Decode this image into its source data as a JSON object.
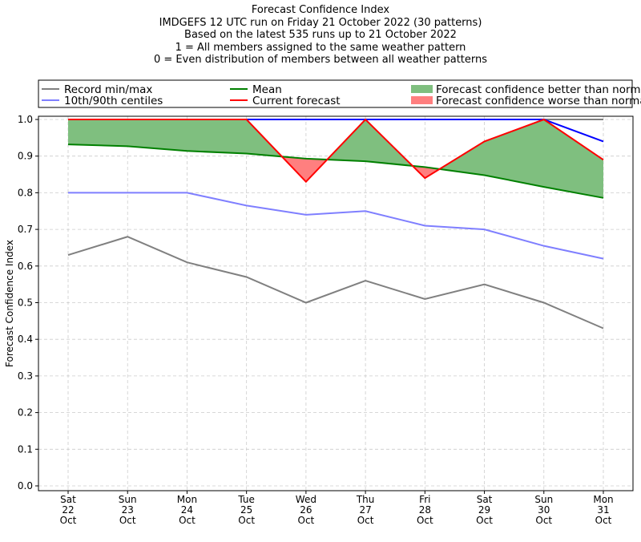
{
  "chart_data": {
    "type": "line",
    "title_lines": [
      "Forecast Confidence Index",
      "IMDGEFS 12 UTC run on Friday 21 October 2022 (30 patterns)",
      "Based on the latest 535 runs up to 21 October 2022",
      "1 = All members assigned to the same weather pattern",
      "0 = Even distribution of members between all weather patterns"
    ],
    "ylabel": "Forecast Confidence Index",
    "xlabel": "",
    "ylim": [
      0,
      1.0
    ],
    "yticks": [
      "0.0",
      "0.1",
      "0.2",
      "0.3",
      "0.4",
      "0.5",
      "0.6",
      "0.7",
      "0.8",
      "0.9",
      "1.0"
    ],
    "categories": [
      [
        "Sat",
        "22",
        "Oct"
      ],
      [
        "Sun",
        "23",
        "Oct"
      ],
      [
        "Mon",
        "24",
        "Oct"
      ],
      [
        "Tue",
        "25",
        "Oct"
      ],
      [
        "Wed",
        "26",
        "Oct"
      ],
      [
        "Thu",
        "27",
        "Oct"
      ],
      [
        "Fri",
        "28",
        "Oct"
      ],
      [
        "Sat",
        "29",
        "Oct"
      ],
      [
        "Sun",
        "30",
        "Oct"
      ],
      [
        "Mon",
        "31",
        "Oct"
      ]
    ],
    "grid": true,
    "legend_position": "top",
    "series": [
      {
        "name": "Record min/max",
        "role": "min",
        "color": "#808080",
        "values": [
          0.63,
          0.68,
          0.61,
          0.57,
          0.5,
          0.56,
          0.51,
          0.55,
          0.5,
          0.43
        ]
      },
      {
        "name": "Record min/max",
        "role": "max",
        "color": "#808080",
        "values": [
          1.0,
          1.0,
          1.0,
          1.0,
          1.0,
          1.0,
          1.0,
          1.0,
          1.0,
          1.0
        ]
      },
      {
        "name": "10th/90th centiles",
        "role": "p10",
        "color": "#7f7fff",
        "values": [
          0.8,
          0.8,
          0.8,
          0.765,
          0.74,
          0.75,
          0.71,
          0.7,
          0.655,
          0.62
        ]
      },
      {
        "name": "10th/90th centiles",
        "role": "p90",
        "color": "#0000ff",
        "values": [
          1.0,
          1.0,
          1.0,
          1.0,
          1.0,
          1.0,
          1.0,
          1.0,
          1.0,
          0.94
        ]
      },
      {
        "name": "Mean",
        "role": "mean",
        "color": "#008000",
        "values": [
          0.932,
          0.927,
          0.914,
          0.907,
          0.893,
          0.886,
          0.87,
          0.848,
          0.816,
          0.786
        ]
      },
      {
        "name": "Current forecast",
        "role": "current",
        "color": "#ff0000",
        "values": [
          1.0,
          1.0,
          1.0,
          1.0,
          0.83,
          1.0,
          0.84,
          0.94,
          1.0,
          0.89
        ]
      }
    ],
    "fills": [
      {
        "name": "Forecast confidence better than normal",
        "color": "#7fbf7f"
      },
      {
        "name": "Forecast confidence worse than normal",
        "color": "#ff7f7f"
      }
    ],
    "legend": [
      {
        "label": "Record min/max",
        "color": "#808080",
        "kind": "line"
      },
      {
        "label": "10th/90th centiles",
        "color": "#7f7fff",
        "kind": "line"
      },
      {
        "label": "Mean",
        "color": "#008000",
        "kind": "line"
      },
      {
        "label": "Current forecast",
        "color": "#ff0000",
        "kind": "line"
      },
      {
        "label": "Forecast confidence better than normal",
        "color": "#7fbf7f",
        "kind": "patch"
      },
      {
        "label": "Forecast confidence worse than normal",
        "color": "#ff7f7f",
        "kind": "patch"
      }
    ]
  }
}
